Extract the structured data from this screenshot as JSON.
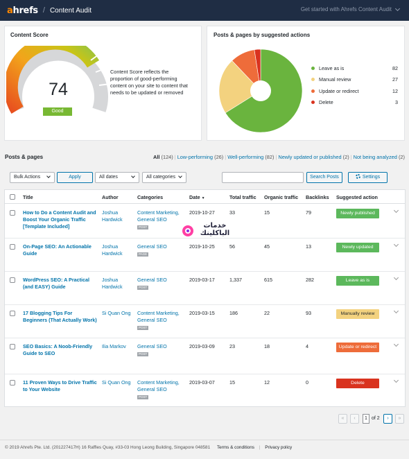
{
  "topbar": {
    "logo_prefix": "a",
    "logo_rest": "hrefs",
    "separator": "/",
    "title": "Content Audit",
    "get_started": "Get started with Ahrefs Content Audit"
  },
  "score_card": {
    "title": "Content Score",
    "score": "74",
    "badge": "Good",
    "description": "Content Score reflects the proportion of good-performing content on your site to content that needs to be updated or removed"
  },
  "actions_card": {
    "title": "Posts & pages by suggested actions",
    "chart_data": {
      "type": "pie",
      "donut": true,
      "title": "Posts & pages by suggested actions",
      "categories": [
        "Leave as is",
        "Manual review",
        "Update or redirect",
        "Delete"
      ],
      "values": [
        82,
        27,
        12,
        3
      ],
      "colors": [
        "#6ab43e",
        "#f3d27f",
        "#ee6c3a",
        "#d9331f"
      ],
      "legend_position": "right"
    }
  },
  "posts": {
    "section_title": "Posts & pages",
    "filters": [
      {
        "label": "All",
        "count": "(124)",
        "current": true
      },
      {
        "label": "Low-performing",
        "count": "(26)",
        "current": false
      },
      {
        "label": "Well-performing",
        "count": "(82)",
        "current": false
      },
      {
        "label": "Newly updated or published",
        "count": "(2)",
        "current": false
      },
      {
        "label": "Not being analyzed",
        "count": "(2)",
        "current": false
      }
    ],
    "bulk_actions": "Bulk Actions",
    "apply": "Apply",
    "all_dates": "All dates",
    "all_categories": "All categories",
    "search_value": "",
    "search_button": "Search Posts",
    "settings_button": "Settings",
    "columns": [
      "Title",
      "Author",
      "Categories",
      "Date",
      "Total traffic",
      "Organic traffic",
      "Backlinks",
      "Suggested action"
    ],
    "rows": [
      {
        "title": "How to Do a Content Audit and Boost Your Organic Traffic [Template Included]",
        "author": "Joshua Hardwick",
        "categories": "Content Marketing, General SEO",
        "tag": "POST",
        "date": "2019-10-27",
        "total": "33",
        "organic": "15",
        "backlinks": "79",
        "action": "Newly published",
        "action_color": "#5cb85c"
      },
      {
        "title": "On-Page SEO: An Actionable Guide",
        "author": "Joshua Hardwick",
        "categories": "General SEO",
        "tag": "PAGE",
        "date": "2019-10-25",
        "total": "56",
        "organic": "45",
        "backlinks": "13",
        "action": "Newly updated",
        "action_color": "#5cb85c"
      },
      {
        "title": "WordPress SEO: A Practical (and EASY) Guide",
        "author": "Joshua Hardwick",
        "categories": "General SEO",
        "tag": "POST",
        "date": "2019-03-17",
        "total": "1,337",
        "organic": "615",
        "backlinks": "282",
        "action": "Leave as is",
        "action_color": "#5cb85c"
      },
      {
        "title": "17 Blogging Tips For Beginners (That Actually Work)",
        "author": "Si Quan Ong",
        "categories": "Content Marketing, General SEO",
        "tag": "POST",
        "date": "2019-03-15",
        "total": "186",
        "organic": "22",
        "backlinks": "93",
        "action": "Manually review",
        "action_color": "#f3d27f"
      },
      {
        "title": "SEO Basics: A Noob-Friendly Guide to SEO",
        "author": "Ilia Markov",
        "categories": "General SEO",
        "tag": "POST",
        "date": "2019-03-09",
        "total": "23",
        "organic": "18",
        "backlinks": "4",
        "action": "Update or redirect",
        "action_color": "#ee6c3a"
      },
      {
        "title": "11 Proven Ways to Drive Traffic to Your Website",
        "author": "Si Quan Ong",
        "categories": "Content Marketing, General SEO",
        "tag": "POST",
        "date": "2019-03-07",
        "total": "15",
        "organic": "12",
        "backlinks": "0",
        "action": "Delete",
        "action_color": "#d9331f"
      }
    ],
    "pagination": {
      "first": "«",
      "prev": "‹",
      "current": "1",
      "of": "of 2",
      "next": "›",
      "last": "»"
    }
  },
  "footer": {
    "copyright": "© 2019 Ahrefs Pte. Ltd. (201227417H) 16 Raffles Quay, #33-03 Hong Leong Building, Singapore 048581",
    "terms": "Terms & conditions",
    "separator": "|",
    "privacy": "Privacy policy"
  },
  "watermark": {
    "line1": "خدمات",
    "line2": "الباكلينك"
  }
}
